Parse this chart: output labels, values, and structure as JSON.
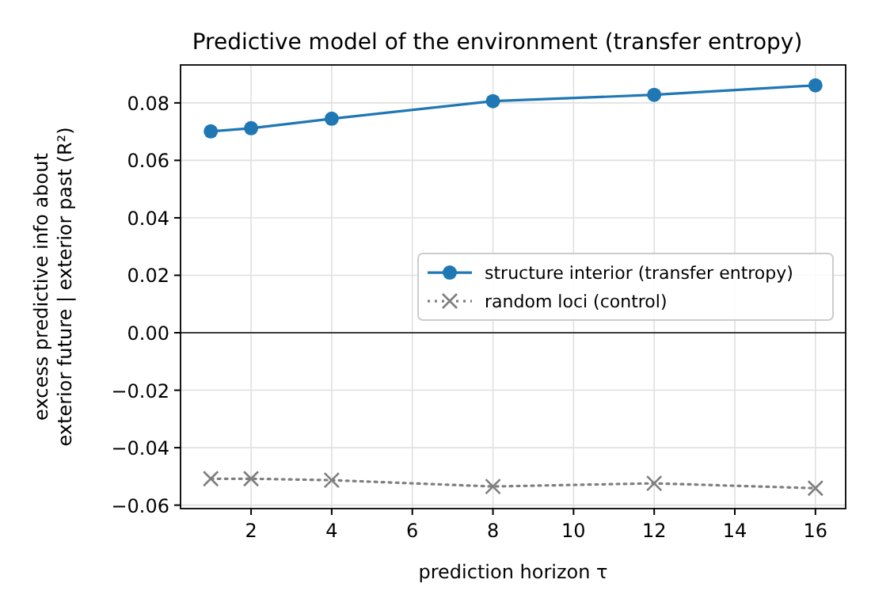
{
  "chart_data": {
    "type": "line",
    "title": "Predictive model of the environment (transfer entropy)",
    "xlabel": "prediction horizon τ",
    "ylabel": "excess predictive info about\nexterior future | exterior past  (R²)",
    "x": [
      1,
      2,
      4,
      8,
      12,
      16
    ],
    "series": [
      {
        "name": "structure interior (transfer entropy)",
        "color": "#1f77b4",
        "values": [
          0.0701,
          0.0712,
          0.0745,
          0.0806,
          0.0828,
          0.0861
        ],
        "marker": "circle",
        "line_style": "solid"
      },
      {
        "name": "random loci (control)",
        "color": "#7f7f7f",
        "values": [
          -0.0508,
          -0.0508,
          -0.0513,
          -0.0535,
          -0.0524,
          -0.0541
        ],
        "marker": "cross",
        "line_style": "dotted"
      }
    ],
    "xlim": [
      0.25,
      16.75
    ],
    "xticks": [
      2,
      4,
      6,
      8,
      10,
      12,
      14,
      16
    ],
    "ylim": [
      -0.0612,
      0.0932
    ],
    "yticks": [
      {
        "value": -0.06,
        "label": "−0.06"
      },
      {
        "value": -0.04,
        "label": "−0.04"
      },
      {
        "value": -0.02,
        "label": "−0.02"
      },
      {
        "value": 0,
        "label": "0.00"
      },
      {
        "value": 0.02,
        "label": "0.02"
      },
      {
        "value": 0.04,
        "label": "0.04"
      },
      {
        "value": 0.06,
        "label": "0.06"
      },
      {
        "value": 0.08,
        "label": "0.08"
      }
    ],
    "ref_lines": [
      {
        "axis": "y",
        "value": 0,
        "color": "#000000"
      }
    ],
    "grid": true,
    "legend": "right"
  }
}
